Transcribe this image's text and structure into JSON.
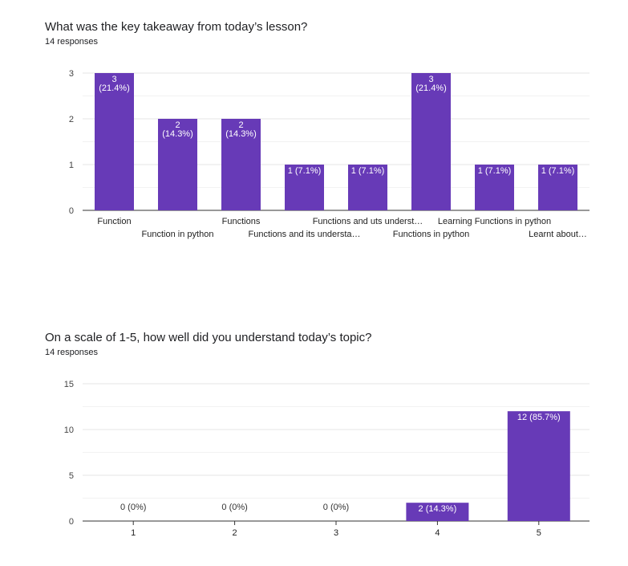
{
  "accent": "#673ab7",
  "q1": {
    "title": "What was the key takeaway from today’s lesson?",
    "responses": "14 responses"
  },
  "q2": {
    "title": "On a scale of 1-5, how well did you understand today’s topic?",
    "responses": "14 responses"
  },
  "chart_data": [
    {
      "type": "bar",
      "title": "What was the key takeaway from today’s lesson?",
      "categories": [
        "Function",
        "Function in python",
        "Functions",
        "Functions and its understa…",
        "Functions and uts underst…",
        "Functions in python",
        "Learning Functions in python",
        "Learnt about…"
      ],
      "values": [
        3,
        2,
        2,
        1,
        1,
        3,
        1,
        1
      ],
      "labels": [
        [
          "3",
          "(21.4%)"
        ],
        [
          "2",
          "(14.3%)"
        ],
        [
          "2",
          "(14.3%)"
        ],
        [
          "1 (7.1%)"
        ],
        [
          "1 (7.1%)"
        ],
        [
          "3",
          "(21.4%)"
        ],
        [
          "1 (7.1%)"
        ],
        [
          "1 (7.1%)"
        ]
      ],
      "yticks": [
        0,
        1,
        2,
        3
      ],
      "ylim": [
        0,
        3
      ],
      "grid": true
    },
    {
      "type": "bar",
      "title": "On a scale of 1-5, how well did you understand today’s topic?",
      "categories": [
        "1",
        "2",
        "3",
        "4",
        "5"
      ],
      "values": [
        0,
        0,
        0,
        2,
        12
      ],
      "labels": [
        [
          "0 (0%)"
        ],
        [
          "0 (0%)"
        ],
        [
          "0 (0%)"
        ],
        [
          "2 (14.3%)"
        ],
        [
          "12 (85.7%)"
        ]
      ],
      "yticks": [
        0,
        5,
        10,
        15
      ],
      "ylim": [
        0,
        15
      ],
      "grid": true
    }
  ]
}
